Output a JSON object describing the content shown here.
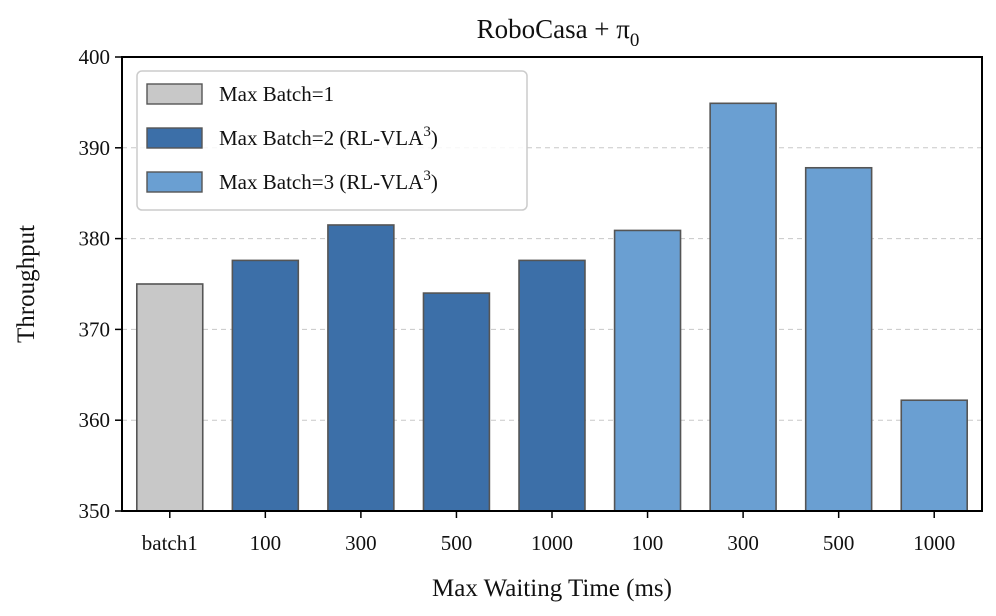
{
  "chart_data": {
    "type": "bar",
    "title": "RoboCasa + π",
    "title_subscript": "0",
    "xlabel": "Max Waiting Time (ms)",
    "ylabel": "Throughput",
    "ylim": [
      350,
      400
    ],
    "yticks": [
      350,
      360,
      370,
      380,
      390,
      400
    ],
    "grid": "horizontal dashed",
    "legend_position": "top-left",
    "categories": [
      "batch1",
      "100",
      "300",
      "500",
      "1000",
      "100",
      "300",
      "500",
      "1000"
    ],
    "values": [
      375.0,
      377.6,
      381.5,
      374.0,
      377.6,
      380.9,
      394.9,
      387.8,
      362.2
    ],
    "bar_series_index": [
      0,
      1,
      1,
      1,
      1,
      2,
      2,
      2,
      2
    ],
    "series": [
      {
        "name": "Max Batch=1",
        "superscript": "",
        "name_suffix": "",
        "color": "#c8c8c8"
      },
      {
        "name": "Max Batch=2 (RL-VLA",
        "superscript": "3",
        "name_suffix": ")",
        "color": "#3c6fa8"
      },
      {
        "name": "Max Batch=3 (RL-VLA",
        "superscript": "3",
        "name_suffix": ")",
        "color": "#6a9fd2"
      }
    ]
  }
}
